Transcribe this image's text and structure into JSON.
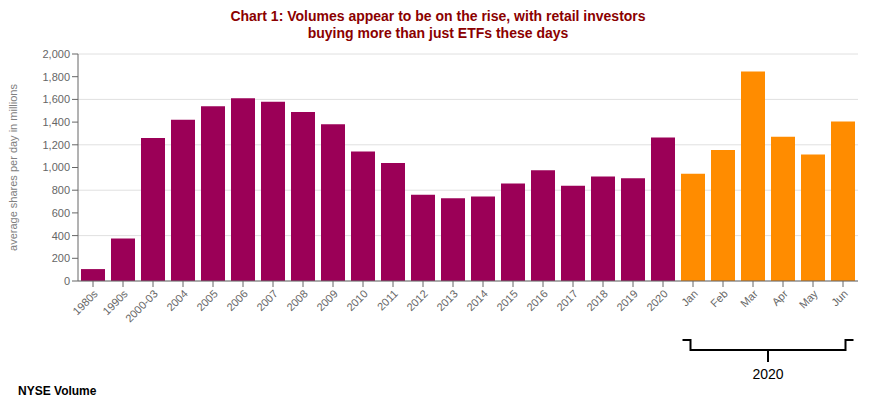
{
  "chart_data": {
    "type": "bar",
    "title": "Chart 1: Volumes appear to be on the rise, with retail investors\nbuying more than just ETFs these days",
    "y_label": "average shares per day in millions",
    "categories": [
      "1980s",
      "1990s",
      "2000-03",
      "2004",
      "2005",
      "2006",
      "2007",
      "2008",
      "2009",
      "2010",
      "2011",
      "2012",
      "2013",
      "2014",
      "2015",
      "2016",
      "2017",
      "2018",
      "2019",
      "2020",
      "Jan",
      "Feb",
      "Mar",
      "Apr",
      "May",
      "Jun"
    ],
    "values": [
      105,
      375,
      1260,
      1420,
      1540,
      1610,
      1580,
      1490,
      1380,
      1140,
      1040,
      760,
      730,
      745,
      860,
      975,
      840,
      920,
      905,
      1265,
      945,
      1155,
      1845,
      1270,
      1115,
      1405
    ],
    "colors": [
      "#9B0057",
      "#9B0057",
      "#9B0057",
      "#9B0057",
      "#9B0057",
      "#9B0057",
      "#9B0057",
      "#9B0057",
      "#9B0057",
      "#9B0057",
      "#9B0057",
      "#9B0057",
      "#9B0057",
      "#9B0057",
      "#9B0057",
      "#9B0057",
      "#9B0057",
      "#9B0057",
      "#9B0057",
      "#9B0057",
      "#FF8C00",
      "#FF8C00",
      "#FF8C00",
      "#FF8C00",
      "#FF8C00",
      "#FF8C00"
    ],
    "ylim": [
      0,
      2000
    ],
    "yticks": [
      0,
      200,
      400,
      600,
      800,
      {
        "value": 1000,
        "label": "1,000"
      },
      {
        "value": 1200,
        "label": "1,200"
      },
      {
        "value": 1400,
        "label": "1,400"
      },
      {
        "value": 1600,
        "label": "1,600"
      },
      {
        "value": 1800,
        "label": "1,800"
      },
      {
        "value": 2000,
        "label": "2,000"
      }
    ],
    "grid": true,
    "annotations": [
      "2020",
      "NYSE Volume"
    ]
  }
}
